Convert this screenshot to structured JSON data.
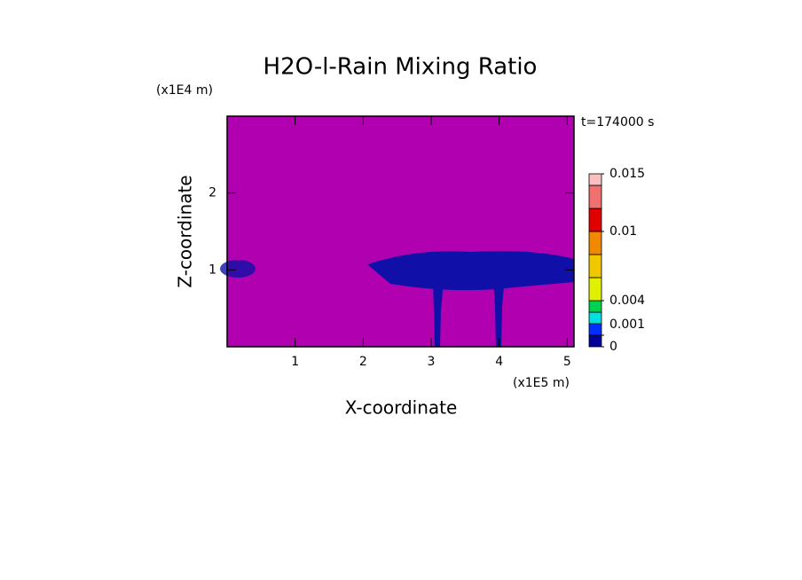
{
  "chart_data": {
    "type": "contour",
    "title": "H2O-l-Rain Mixing Ratio",
    "xlabel": "X-coordinate",
    "ylabel": "Z-coordinate",
    "xunit": "(x1E5 m)",
    "yunit": "(x1E4 m)",
    "annotation": "t=174000 s",
    "xlim": [
      0,
      5.1
    ],
    "ylim": [
      0,
      3
    ],
    "xticks": [
      1,
      2,
      3,
      4,
      5
    ],
    "yticks": [
      1,
      2
    ],
    "background_color": "#b000b0",
    "colorbar": {
      "levels": [
        0,
        0.001,
        0.002,
        0.003,
        0.004,
        0.006,
        0.008,
        0.01,
        0.012,
        0.014,
        0.015
      ],
      "colors": [
        "#00009a",
        "#0030ff",
        "#00e0e0",
        "#00d050",
        "#e0f000",
        "#f0c800",
        "#f08800",
        "#e00000",
        "#f07070",
        "#f8c0c0"
      ],
      "ticks": [
        0,
        0.001,
        0.004,
        0.01,
        0.015
      ]
    }
  }
}
